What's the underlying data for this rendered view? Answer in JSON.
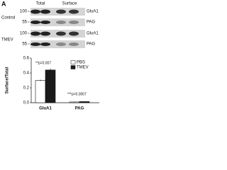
{
  "panel_label": "A",
  "blots": {
    "columns": [
      "Total",
      "Surface"
    ],
    "rows": [
      {
        "label": "Control",
        "bands": [
          {
            "marker": 100,
            "protein": "GluA1"
          },
          {
            "marker": 55,
            "protein": "PAG"
          }
        ]
      },
      {
        "label": "TMEV",
        "bands": [
          {
            "marker": 100,
            "protein": "GluA1"
          },
          {
            "marker": 55,
            "protein": "PAG"
          }
        ]
      }
    ]
  },
  "chart_data": {
    "type": "bar",
    "y_label": "Surface/Total",
    "categories": [
      "GluA1",
      "PAG"
    ],
    "series": [
      {
        "name": "PBS",
        "color": "#ffffff",
        "values": [
          0.3,
          0.01
        ],
        "errors": [
          0.01,
          0.004
        ]
      },
      {
        "name": "TMEV",
        "color": "#1a1a1a",
        "values": [
          0.44,
          0.015
        ],
        "errors": [
          0.02,
          0.004
        ]
      }
    ],
    "ylim": [
      0,
      0.6
    ],
    "yticks": [
      {
        "value": 0,
        "label": "0.0"
      },
      0.2,
      0.4,
      0.6
    ],
    "annotations": [
      "**p=0.007",
      "***p=0.0007"
    ]
  }
}
